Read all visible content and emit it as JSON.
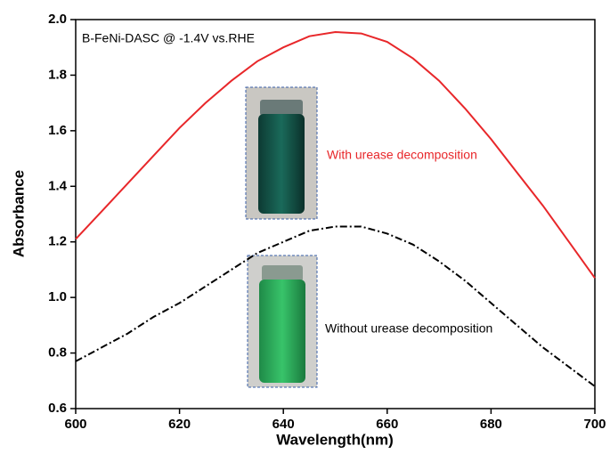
{
  "chart_data": {
    "type": "line",
    "annotation": "B-FeNi-DASC @ -1.4V vs.RHE",
    "x_label": "Wavelength(nm)",
    "y_label": "Absorbance",
    "x": [
      600,
      605,
      610,
      615,
      620,
      625,
      630,
      635,
      640,
      645,
      650,
      655,
      660,
      665,
      670,
      675,
      680,
      685,
      690,
      695,
      700
    ],
    "series": [
      {
        "name": "With urease decomposition",
        "color": "#e8272a",
        "style": "solid",
        "values": [
          1.21,
          1.31,
          1.41,
          1.51,
          1.61,
          1.7,
          1.78,
          1.85,
          1.9,
          1.94,
          1.955,
          1.95,
          1.92,
          1.86,
          1.78,
          1.68,
          1.57,
          1.45,
          1.33,
          1.2,
          1.07
        ]
      },
      {
        "name": "Without urease decomposition",
        "color": "#000000",
        "style": "dashdot",
        "values": [
          0.77,
          0.82,
          0.87,
          0.93,
          0.98,
          1.04,
          1.1,
          1.16,
          1.2,
          1.24,
          1.255,
          1.255,
          1.23,
          1.19,
          1.13,
          1.06,
          0.98,
          0.9,
          0.82,
          0.75,
          0.68
        ]
      }
    ],
    "xlim": [
      600,
      700
    ],
    "xticks": [
      600,
      620,
      640,
      660,
      680,
      700
    ],
    "ylim": [
      0.6,
      2.0
    ],
    "yticks": [
      0.6,
      0.8,
      {
        "value": 1,
        "label": "1.0"
      },
      1.2,
      1.4,
      1.6,
      1.8,
      {
        "value": 2,
        "label": "2.0"
      }
    ]
  }
}
